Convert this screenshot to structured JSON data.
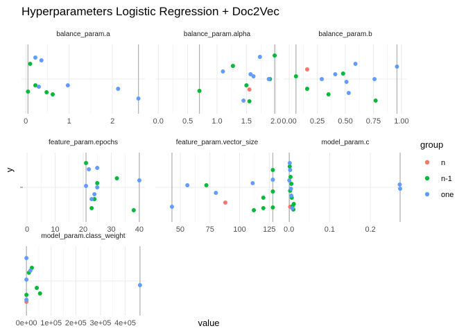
{
  "chart_data": {
    "type": "scatter",
    "title": "Hyperparameters Logistic Regression + Doc2Vec",
    "xlabel": "value",
    "ylabel": "y",
    "grid": true,
    "legend": {
      "title": "group",
      "placement": "right",
      "entries": [
        {
          "name": "n",
          "color": "#F8766D"
        },
        {
          "name": "n-1",
          "color": "#00BA38"
        },
        {
          "name": "one",
          "color": "#619CFF"
        }
      ]
    },
    "panels": [
      {
        "name": "balance_param.a",
        "xlim": [
          -0.1,
          2.75
        ],
        "ticks": [
          {
            "v": 0,
            "label": "0"
          },
          {
            "v": 1,
            "label": "1"
          },
          {
            "v": 2,
            "label": "2"
          }
        ],
        "points": [
          {
            "group": "n-1",
            "x": 0.05,
            "y": -0.18
          },
          {
            "group": "n-1",
            "x": 0.1,
            "y": 0.22
          },
          {
            "group": "n-1",
            "x": 0.22,
            "y": -0.09
          },
          {
            "group": "n-1",
            "x": 0.48,
            "y": -0.19
          },
          {
            "group": "n-1",
            "x": 0.62,
            "y": -0.22
          },
          {
            "group": "one",
            "x": 0.22,
            "y": 0.31
          },
          {
            "group": "one",
            "x": 0.3,
            "y": -0.11
          },
          {
            "group": "one",
            "x": 0.36,
            "y": 0.27
          },
          {
            "group": "one",
            "x": 0.97,
            "y": -0.09
          },
          {
            "group": "one",
            "x": 2.13,
            "y": -0.14
          },
          {
            "group": "one",
            "x": 2.6,
            "y": -0.28
          }
        ]
      },
      {
        "name": "balance_param.alpha",
        "xlim": [
          -0.05,
          2.05
        ],
        "ticks": [
          {
            "v": 0,
            "label": "0.0"
          },
          {
            "v": 0.5,
            "label": "0.5"
          },
          {
            "v": 1,
            "label": "1.0"
          },
          {
            "v": 1.5,
            "label": "1.5"
          },
          {
            "v": 2,
            "label": "2.0"
          }
        ],
        "points": [
          {
            "group": "n",
            "x": 1.55,
            "y": -0.15
          },
          {
            "group": "n-1",
            "x": 0.7,
            "y": -0.17
          },
          {
            "group": "n-1",
            "x": 1.27,
            "y": 0.19
          },
          {
            "group": "n-1",
            "x": 1.5,
            "y": -0.09
          },
          {
            "group": "n-1",
            "x": 1.55,
            "y": -0.32
          },
          {
            "group": "n-1",
            "x": 1.9,
            "y": 0.0
          },
          {
            "group": "n-1",
            "x": 1.98,
            "y": 0.34
          },
          {
            "group": "one",
            "x": 1.1,
            "y": 0.11
          },
          {
            "group": "one",
            "x": 1.45,
            "y": -0.31
          },
          {
            "group": "one",
            "x": 1.57,
            "y": 0.07
          },
          {
            "group": "one",
            "x": 1.62,
            "y": 0.04
          },
          {
            "group": "one",
            "x": 1.73,
            "y": 0.32
          },
          {
            "group": "one",
            "x": 1.88,
            "y": 0.0
          }
        ]
      },
      {
        "name": "balance_param.b",
        "xlim": [
          -0.05,
          1.05
        ],
        "ticks": [
          {
            "v": 0,
            "label": "0.00"
          },
          {
            "v": 0.25,
            "label": "0.25"
          },
          {
            "v": 0.5,
            "label": "0.50"
          },
          {
            "v": 0.75,
            "label": "0.75"
          },
          {
            "v": 1,
            "label": "1.00"
          }
        ],
        "points": [
          {
            "group": "n",
            "x": 0.16,
            "y": 0.14
          },
          {
            "group": "n-1",
            "x": 0.06,
            "y": 0.04
          },
          {
            "group": "n-1",
            "x": 0.16,
            "y": -0.14
          },
          {
            "group": "n-1",
            "x": 0.35,
            "y": -0.22
          },
          {
            "group": "n-1",
            "x": 0.48,
            "y": 0.08
          },
          {
            "group": "n-1",
            "x": 0.77,
            "y": -0.31
          },
          {
            "group": "one",
            "x": 0.29,
            "y": 0.0
          },
          {
            "group": "one",
            "x": 0.41,
            "y": 0.07
          },
          {
            "group": "one",
            "x": 0.51,
            "y": -0.04
          },
          {
            "group": "one",
            "x": 0.53,
            "y": -0.2
          },
          {
            "group": "one",
            "x": 0.59,
            "y": 0.22
          },
          {
            "group": "one",
            "x": 0.76,
            "y": 0.0
          },
          {
            "group": "one",
            "x": 0.96,
            "y": 0.18
          }
        ]
      },
      {
        "name": "feature_param.epochs",
        "xlim": [
          -2,
          42
        ],
        "ticks": [
          {
            "v": 0,
            "label": "0"
          },
          {
            "v": 10,
            "label": "10"
          },
          {
            "v": 20,
            "label": "20"
          },
          {
            "v": 30,
            "label": "30"
          },
          {
            "v": 40,
            "label": "40"
          }
        ],
        "points": [
          {
            "group": "n-1",
            "x": 21,
            "y": 0.35
          },
          {
            "group": "n-1",
            "x": 23,
            "y": -0.3
          },
          {
            "group": "n-1",
            "x": 24,
            "y": -0.17
          },
          {
            "group": "n-1",
            "x": 25,
            "y": 0.06
          },
          {
            "group": "n-1",
            "x": 32,
            "y": 0.13
          },
          {
            "group": "n-1",
            "x": 38,
            "y": -0.33
          },
          {
            "group": "one",
            "x": 21,
            "y": 0.02
          },
          {
            "group": "one",
            "x": 22,
            "y": 0.26
          },
          {
            "group": "one",
            "x": 23,
            "y": -0.17
          },
          {
            "group": "one",
            "x": 24,
            "y": -0.1
          },
          {
            "group": "one",
            "x": 25,
            "y": 0.28
          },
          {
            "group": "one",
            "x": 25,
            "y": 0.0
          },
          {
            "group": "one",
            "x": 40,
            "y": 0.1
          }
        ]
      },
      {
        "name": "feature_param.vector_size",
        "xlim": [
          29,
          133
        ],
        "ticks": [
          {
            "v": 50,
            "label": "50"
          },
          {
            "v": 75,
            "label": "75"
          },
          {
            "v": 100,
            "label": "100"
          },
          {
            "v": 125,
            "label": "125"
          }
        ],
        "points": [
          {
            "group": "n",
            "x": 88,
            "y": -0.22
          },
          {
            "group": "n-1",
            "x": 72,
            "y": 0.03
          },
          {
            "group": "n-1",
            "x": 112,
            "y": -0.33
          },
          {
            "group": "n-1",
            "x": 120,
            "y": -0.15
          },
          {
            "group": "n-1",
            "x": 120,
            "y": -0.3
          },
          {
            "group": "n-1",
            "x": 128,
            "y": 0.25
          },
          {
            "group": "n-1",
            "x": 128,
            "y": -0.06
          },
          {
            "group": "n-1",
            "x": 128,
            "y": -0.29
          },
          {
            "group": "one",
            "x": 43,
            "y": -0.28
          },
          {
            "group": "one",
            "x": 56,
            "y": 0.03
          },
          {
            "group": "one",
            "x": 80,
            "y": -0.08
          },
          {
            "group": "one",
            "x": 111,
            "y": 0.06
          },
          {
            "group": "one",
            "x": 128,
            "y": 0.11
          }
        ]
      },
      {
        "name": "model_param.c",
        "xlim": [
          -0.013,
          0.29
        ],
        "ticks": [
          {
            "v": 0,
            "label": "0.0"
          },
          {
            "v": 0.1,
            "label": "0.1"
          },
          {
            "v": 0.2,
            "label": "0.2"
          }
        ],
        "points": [
          {
            "group": "n",
            "x": 0.003,
            "y": -0.28
          },
          {
            "group": "n-1",
            "x": 0.002,
            "y": 0.3
          },
          {
            "group": "n-1",
            "x": 0.004,
            "y": 0.15
          },
          {
            "group": "n-1",
            "x": 0.006,
            "y": 0.05
          },
          {
            "group": "n-1",
            "x": 0.003,
            "y": -0.05
          },
          {
            "group": "n-1",
            "x": 0.007,
            "y": -0.15
          },
          {
            "group": "n-1",
            "x": 0.009,
            "y": -0.27
          },
          {
            "group": "n-1",
            "x": 0.011,
            "y": -0.32
          },
          {
            "group": "n-1",
            "x": 0.012,
            "y": -0.24
          },
          {
            "group": "one",
            "x": 0.002,
            "y": 0.35
          },
          {
            "group": "one",
            "x": 0.003,
            "y": 0.25
          },
          {
            "group": "one",
            "x": 0.001,
            "y": 0.1
          },
          {
            "group": "one",
            "x": 0.005,
            "y": -0.02
          },
          {
            "group": "one",
            "x": 0.006,
            "y": -0.12
          },
          {
            "group": "one",
            "x": 0.008,
            "y": -0.3
          },
          {
            "group": "one",
            "x": 0.272,
            "y": 0.04
          },
          {
            "group": "one",
            "x": 0.273,
            "y": -0.02
          }
        ]
      },
      {
        "name": "model_param.class_weight",
        "xlim": [
          -20000,
          480000
        ],
        "ticks": [
          {
            "v": 0,
            "label": "0e+00"
          },
          {
            "v": 100000,
            "label": "1e+05"
          },
          {
            "v": 200000,
            "label": "2e+05"
          },
          {
            "v": 300000,
            "label": "3e+05"
          },
          {
            "v": 400000,
            "label": "4e+05"
          }
        ],
        "points": [
          {
            "group": "n",
            "x": 0,
            "y": -0.3
          },
          {
            "group": "n-1",
            "x": 0,
            "y": -0.2
          },
          {
            "group": "n-1",
            "x": 10000,
            "y": 0.12
          },
          {
            "group": "n-1",
            "x": 22000,
            "y": 0.19
          },
          {
            "group": "n-1",
            "x": 42000,
            "y": -0.1
          },
          {
            "group": "n-1",
            "x": 55000,
            "y": -0.18
          },
          {
            "group": "one",
            "x": 0,
            "y": 0.33
          },
          {
            "group": "one",
            "x": 0,
            "y": 0.02
          },
          {
            "group": "one",
            "x": 0,
            "y": -0.27
          },
          {
            "group": "one",
            "x": 16000,
            "y": 0.15
          },
          {
            "group": "one",
            "x": 460000,
            "y": -0.06
          }
        ]
      }
    ]
  }
}
